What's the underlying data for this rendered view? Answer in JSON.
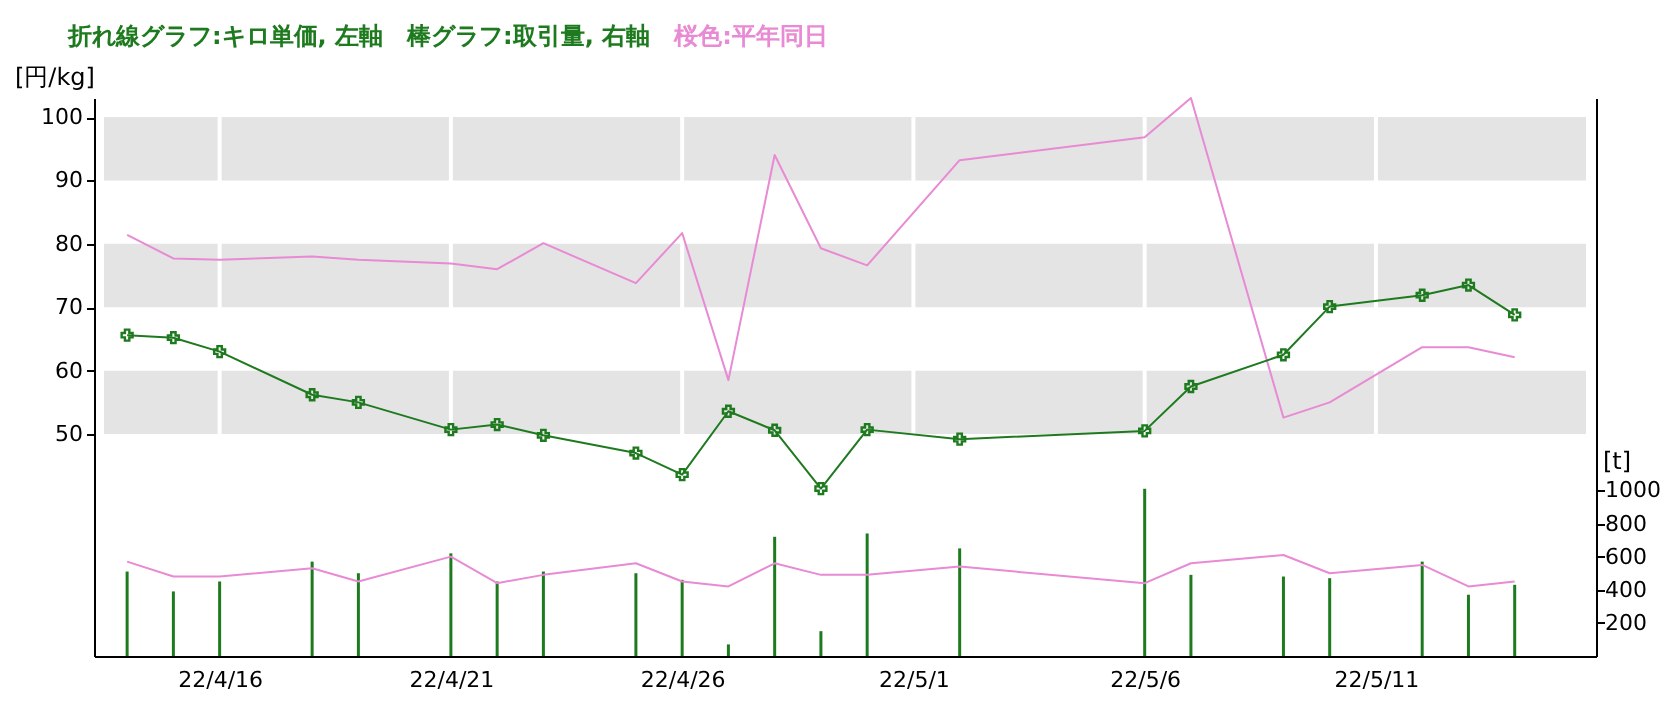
{
  "chart_data": {
    "type": "line",
    "title": "折れ線グラフ:キロ単価, 左軸　棒グラフ:取引量, 右軸",
    "subtitle": "桜色:平年同日",
    "ylabel": "[円/kg]",
    "y2label": "[t]",
    "x": [
      "--04-14",
      "--04-15",
      "--04-16",
      "--04-18",
      "--04-19",
      "--04-21",
      "--04-22",
      "--04-23",
      "--04-25",
      "--04-26",
      "--04-27",
      "--04-28",
      "--04-29",
      "--04-30",
      "--05-02",
      "--05-06",
      "--05-07",
      "--05-09",
      "--05-10",
      "--05-12",
      "--05-13",
      "--05-14"
    ],
    "xlim": [
      "--04-13T12:00",
      "--05-15T13:00"
    ],
    "xticks": [
      {
        "value": "--04-16",
        "label": "22/4/16"
      },
      {
        "value": "--04-21",
        "label": "22/4/21"
      },
      {
        "value": "--04-26",
        "label": "22/4/26"
      },
      {
        "value": "--05-01",
        "label": "22/5/1"
      },
      {
        "value": "--05-06",
        "label": "22/5/6"
      },
      {
        "value": "--05-11",
        "label": "22/5/11"
      }
    ],
    "ylim": [
      15,
      103
    ],
    "yticks": [
      50,
      60,
      70,
      80,
      90,
      100
    ],
    "y2lim": [
      0,
      3370
    ],
    "y2ticks": [
      200,
      400,
      600,
      800,
      1000
    ],
    "grid": "x",
    "bands": [
      {
        "axis": "y",
        "from": 50,
        "to": 60,
        "color": "#e4e4e4"
      },
      {
        "axis": "y",
        "from": 70,
        "to": 80,
        "color": "#e4e4e4"
      },
      {
        "axis": "y",
        "from": 90,
        "to": 100,
        "color": "#e4e4e4"
      }
    ],
    "series": [
      {
        "type": "bar",
        "axis": "y2",
        "color": "#1e7a1e",
        "values": [
          510,
          390,
          450,
          570,
          500,
          620,
          450,
          510,
          500,
          460,
          70,
          720,
          150,
          740,
          650,
          1010,
          490,
          480,
          470,
          570,
          370,
          430
        ]
      },
      {
        "axis": "y2",
        "color": "#e88ad4",
        "marker": "none",
        "values": [
          570,
          480,
          480,
          530,
          450,
          600,
          440,
          490,
          560,
          450,
          420,
          560,
          490,
          490,
          540,
          440,
          560,
          610,
          500,
          550,
          420,
          450
        ]
      },
      {
        "axis": "y",
        "color": "#e88ad4",
        "marker": "none",
        "values": [
          81.4,
          77.7,
          77.5,
          78,
          77.5,
          76.9,
          76,
          80.1,
          73.8,
          81.7,
          58.5,
          94,
          79.3,
          76.6,
          93.2,
          96.8,
          103,
          52.6,
          55,
          63.7,
          63.7,
          62.1
        ]
      },
      {
        "axis": "y",
        "color": "#1e7a1e",
        "marker": "cross",
        "values": [
          65.6,
          65.2,
          63,
          56.2,
          55,
          50.7,
          51.5,
          49.8,
          47,
          43.6,
          53.6,
          50.6,
          41.4,
          50.7,
          49.2,
          50.5,
          57.5,
          62.5,
          70.1,
          71.9,
          73.5,
          68.8
        ]
      }
    ]
  }
}
